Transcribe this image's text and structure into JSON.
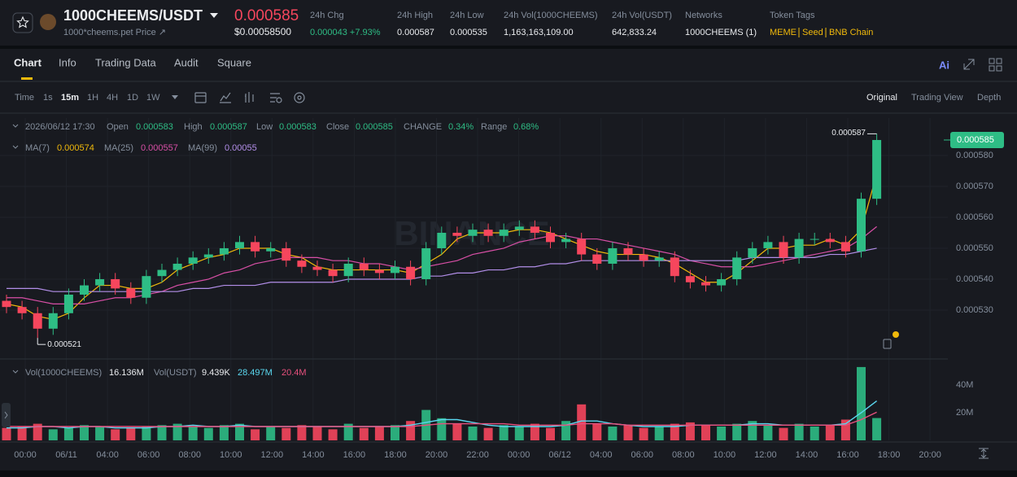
{
  "header": {
    "pair": "1000CHEEMS/USDT",
    "subtitle": "1000*cheems.pet Price ↗",
    "price": "0.000585",
    "price_usd": "$0.00058500",
    "stats": [
      {
        "label": "24h Chg",
        "value": "0.000043 +7.93%"
      },
      {
        "label": "24h High",
        "value": "0.000587"
      },
      {
        "label": "24h Low",
        "value": "0.000535"
      },
      {
        "label": "24h Vol(1000CHEEMS)",
        "value": "1,163,163,109.00"
      },
      {
        "label": "24h Vol(USDT)",
        "value": "642,833.24"
      },
      {
        "label": "Networks",
        "value": "1000CHEEMS (1)"
      }
    ],
    "tags_label": "Token Tags",
    "tags": [
      "MEME",
      "Seed",
      "BNB Chain"
    ]
  },
  "tabs": [
    "Chart",
    "Info",
    "Trading Data",
    "Audit",
    "Square"
  ],
  "ai": "Ai",
  "toolbar": {
    "intervals": [
      "Time",
      "1s",
      "15m",
      "1H",
      "4H",
      "1D",
      "1W"
    ],
    "views": [
      "Original",
      "Trading View",
      "Depth"
    ]
  },
  "chart_data": {
    "type": "candlestick",
    "watermark": "BINANCE",
    "up_color": "#2ebd85",
    "down_color": "#f6465d",
    "grid": true,
    "info": {
      "time": "2026/06/12 17:30",
      "fields": [
        {
          "label": "Open",
          "value": "0.000583"
        },
        {
          "label": "High",
          "value": "0.000587"
        },
        {
          "label": "Low",
          "value": "0.000583"
        },
        {
          "label": "Close",
          "value": "0.000585"
        },
        {
          "label": "CHANGE",
          "value": "0.34%"
        },
        {
          "label": "Range",
          "value": "0.68%"
        }
      ]
    },
    "time_labels": [
      "00:00",
      "06/11",
      "04:00",
      "06:00",
      "08:00",
      "10:00",
      "12:00",
      "14:00",
      "16:00",
      "18:00",
      "20:00",
      "22:00",
      "00:00",
      "06/12",
      "04:00",
      "06:00",
      "08:00",
      "10:00",
      "12:00",
      "14:00",
      "16:00",
      "18:00",
      "20:00"
    ],
    "ylim": [
      0.0005142,
      0.0005921
    ],
    "yticks": [
      {
        "value": 0.00053,
        "label": "0.000530"
      },
      {
        "value": 0.00054,
        "label": "0.000540"
      },
      {
        "value": 0.00055,
        "label": "0.000550"
      },
      {
        "value": 0.00056,
        "label": "0.000560"
      },
      {
        "value": 0.00057,
        "label": "0.000570"
      },
      {
        "value": 0.00058,
        "label": "0.000580"
      }
    ],
    "open": [
      0.000533,
      0.000531,
      0.000529,
      0.000524,
      0.000529,
      0.000535,
      0.000538,
      0.00054,
      0.000537,
      0.000534,
      0.000541,
      0.000543,
      0.000545,
      0.000547,
      0.000548,
      0.00055,
      0.000552,
      0.000549,
      0.00055,
      0.000546,
      0.000544,
      0.000543,
      0.000541,
      0.000545,
      0.000543,
      0.000542,
      0.000544,
      0.00054,
      0.00055,
      0.000555,
      0.000554,
      0.000556,
      0.000554,
      0.000556,
      0.000557,
      0.000555,
      0.000552,
      0.000553,
      0.000548,
      0.000545,
      0.00055,
      0.000548,
      0.000546,
      0.000547,
      0.000541,
      0.000539,
      0.000538,
      0.00054,
      0.000547,
      0.00055,
      0.000552,
      0.000547,
      0.000553,
      0.000553,
      0.000552,
      0.000549,
      0.000566
    ],
    "high": [
      0.000535,
      0.000533,
      0.000531,
      0.000531,
      0.000537,
      0.00054,
      0.000542,
      0.000542,
      0.000539,
      0.000543,
      0.000545,
      0.000547,
      0.000549,
      0.00055,
      0.000552,
      0.000554,
      0.000554,
      0.000552,
      0.000552,
      0.000548,
      0.000546,
      0.000545,
      0.000547,
      0.000547,
      0.000545,
      0.000546,
      0.000546,
      0.000552,
      0.000557,
      0.000557,
      0.000558,
      0.000558,
      0.000558,
      0.000559,
      0.000559,
      0.000557,
      0.000555,
      0.000555,
      0.00055,
      0.000552,
      0.000552,
      0.00055,
      0.000549,
      0.000549,
      0.000543,
      0.000541,
      0.000542,
      0.000549,
      0.000552,
      0.000554,
      0.000554,
      0.000555,
      0.000555,
      0.000555,
      0.000554,
      0.000568,
      0.000587
    ],
    "low": [
      0.000529,
      0.000527,
      0.000521,
      0.000522,
      0.000527,
      0.000533,
      0.000536,
      0.000535,
      0.000532,
      0.000532,
      0.000539,
      0.000541,
      0.000543,
      0.000545,
      0.000546,
      0.000548,
      0.000547,
      0.000547,
      0.000544,
      0.000542,
      0.000541,
      0.000539,
      0.000539,
      0.000541,
      0.00054,
      0.00054,
      0.000538,
      0.000538,
      0.000548,
      0.000552,
      0.000552,
      0.000552,
      0.000552,
      0.000554,
      0.000553,
      0.00055,
      0.00055,
      0.000546,
      0.000543,
      0.000543,
      0.000546,
      0.000544,
      0.000544,
      0.000539,
      0.000537,
      0.000536,
      0.000536,
      0.000538,
      0.000545,
      0.000548,
      0.000545,
      0.000545,
      0.000551,
      0.00055,
      0.000547,
      0.000547,
      0.000564
    ],
    "close": [
      0.000531,
      0.000529,
      0.000524,
      0.000529,
      0.000535,
      0.000538,
      0.00054,
      0.000537,
      0.000534,
      0.000541,
      0.000543,
      0.000545,
      0.000547,
      0.000548,
      0.00055,
      0.000552,
      0.000549,
      0.00055,
      0.000546,
      0.000544,
      0.000543,
      0.000541,
      0.000545,
      0.000543,
      0.000542,
      0.000544,
      0.00054,
      0.00055,
      0.000555,
      0.000554,
      0.000556,
      0.000554,
      0.000556,
      0.000557,
      0.000555,
      0.000552,
      0.000553,
      0.000548,
      0.000545,
      0.00055,
      0.000548,
      0.000546,
      0.000547,
      0.000541,
      0.000539,
      0.000538,
      0.00054,
      0.000547,
      0.00055,
      0.000552,
      0.000547,
      0.000553,
      0.000553,
      0.000552,
      0.000549,
      0.000566,
      0.000585
    ],
    "ma": [
      {
        "name": "MA(7)",
        "color": "#f0b90b",
        "values": [
          0.000532,
          0.000531,
          0.000528,
          0.000527,
          0.000529,
          0.000534,
          0.000538,
          0.000538,
          0.000537,
          0.000537,
          0.000539,
          0.000543,
          0.000545,
          0.000547,
          0.000548,
          0.00055,
          0.00055,
          0.00055,
          0.000548,
          0.000547,
          0.000544,
          0.000543,
          0.000543,
          0.000543,
          0.000543,
          0.000543,
          0.000542,
          0.000545,
          0.000548,
          0.000553,
          0.000555,
          0.000555,
          0.000555,
          0.000556,
          0.000556,
          0.000555,
          0.000553,
          0.000551,
          0.000549,
          0.000548,
          0.000548,
          0.000548,
          0.000547,
          0.000545,
          0.000542,
          0.000539,
          0.000539,
          0.000542,
          0.000546,
          0.00055,
          0.00055,
          0.000551,
          0.000551,
          0.000553,
          0.000551,
          0.000556,
          0.000574
        ]
      },
      {
        "name": "MA(25)",
        "color": "#d84fa6",
        "values": [
          0.000534,
          0.000534,
          0.000533,
          0.000532,
          0.000532,
          0.000532,
          0.000533,
          0.000534,
          0.000534,
          0.000535,
          0.000536,
          0.000538,
          0.000539,
          0.00054,
          0.000542,
          0.000543,
          0.000545,
          0.000546,
          0.000547,
          0.000547,
          0.000547,
          0.000546,
          0.000546,
          0.000545,
          0.000545,
          0.000544,
          0.000543,
          0.000544,
          0.000545,
          0.000546,
          0.000548,
          0.000549,
          0.00055,
          0.000552,
          0.000553,
          0.000554,
          0.000554,
          0.000553,
          0.000553,
          0.000552,
          0.000551,
          0.00055,
          0.000549,
          0.000548,
          0.000546,
          0.000545,
          0.000544,
          0.000544,
          0.000544,
          0.000545,
          0.000546,
          0.000547,
          0.000548,
          0.000549,
          0.00055,
          0.000553,
          0.000557
        ]
      },
      {
        "name": "MA(99)",
        "color": "#b28ee8",
        "values": [
          0.000537,
          0.000537,
          0.000537,
          0.000536,
          0.000536,
          0.000536,
          0.000536,
          0.000536,
          0.000536,
          0.000536,
          0.000536,
          0.000536,
          0.000537,
          0.000537,
          0.000538,
          0.000538,
          0.000538,
          0.000539,
          0.000539,
          0.000539,
          0.000539,
          0.000539,
          0.00054,
          0.00054,
          0.00054,
          0.00054,
          0.00054,
          0.000541,
          0.000541,
          0.000542,
          0.000542,
          0.000543,
          0.000543,
          0.000544,
          0.000544,
          0.000545,
          0.000545,
          0.000546,
          0.000546,
          0.000546,
          0.000546,
          0.000546,
          0.000546,
          0.000546,
          0.000546,
          0.000546,
          0.000546,
          0.000546,
          0.000547,
          0.000547,
          0.000547,
          0.000547,
          0.000547,
          0.000548,
          0.000548,
          0.000549,
          0.00055
        ]
      }
    ],
    "volume": {
      "name": "Vol(1000CHEEMS)",
      "legend_value": "16.136M",
      "quote_name": "Vol(USDT)",
      "quote_value": "9.439K",
      "ylim": [
        0,
        55300000
      ],
      "yticks": [
        {
          "value": 20000000,
          "label": "20M"
        },
        {
          "value": 40000000,
          "label": "40M"
        }
      ],
      "values": [
        9000000,
        10000000,
        12000000,
        8000000,
        9000000,
        11000000,
        10000000,
        8000000,
        9000000,
        10000000,
        11000000,
        12000000,
        10000000,
        9000000,
        11000000,
        12000000,
        8000000,
        10000000,
        9000000,
        11000000,
        10000000,
        8000000,
        12000000,
        9000000,
        10000000,
        11000000,
        14000000,
        22000000,
        16000000,
        12000000,
        10000000,
        9000000,
        11000000,
        10000000,
        12000000,
        9000000,
        14000000,
        26000000,
        12000000,
        10000000,
        11000000,
        9000000,
        10000000,
        12000000,
        13000000,
        11000000,
        10000000,
        12000000,
        14000000,
        11000000,
        9000000,
        12000000,
        10000000,
        11000000,
        15000000,
        53000000,
        16136000
      ],
      "ma": [
        {
          "color": "#5ad8f0",
          "legend_value": "28.497M",
          "values": [
            9000000,
            9000000,
            10000000,
            10000000,
            9000000,
            10000000,
            10000000,
            9000000,
            9000000,
            9000000,
            10000000,
            10000000,
            11000000,
            10000000,
            10000000,
            11000000,
            10000000,
            10000000,
            10000000,
            10000000,
            10000000,
            10000000,
            10000000,
            10000000,
            10000000,
            10000000,
            11000000,
            13000000,
            15000000,
            15000000,
            13000000,
            11000000,
            10000000,
            10000000,
            10000000,
            10000000,
            11000000,
            14000000,
            14000000,
            12000000,
            11000000,
            10000000,
            10000000,
            10000000,
            11000000,
            11000000,
            11000000,
            11000000,
            12000000,
            12000000,
            11000000,
            11000000,
            11000000,
            11000000,
            12000000,
            20000000,
            28497000
          ]
        },
        {
          "color": "#e8507e",
          "legend_value": "20.4M",
          "values": [
            10000000,
            10000000,
            10000000,
            10000000,
            10000000,
            10000000,
            10000000,
            10000000,
            10000000,
            10000000,
            10000000,
            10000000,
            10000000,
            10000000,
            10000000,
            10000000,
            10000000,
            10000000,
            10000000,
            10000000,
            10000000,
            10000000,
            10000000,
            10000000,
            10000000,
            10000000,
            10000000,
            11000000,
            12000000,
            12000000,
            12000000,
            12000000,
            12000000,
            11000000,
            11000000,
            11000000,
            11000000,
            12000000,
            12000000,
            12000000,
            11000000,
            11000000,
            11000000,
            11000000,
            11000000,
            11000000,
            11000000,
            11000000,
            11000000,
            11000000,
            11000000,
            11000000,
            11000000,
            11000000,
            11000000,
            15000000,
            20400000
          ]
        }
      ]
    }
  }
}
